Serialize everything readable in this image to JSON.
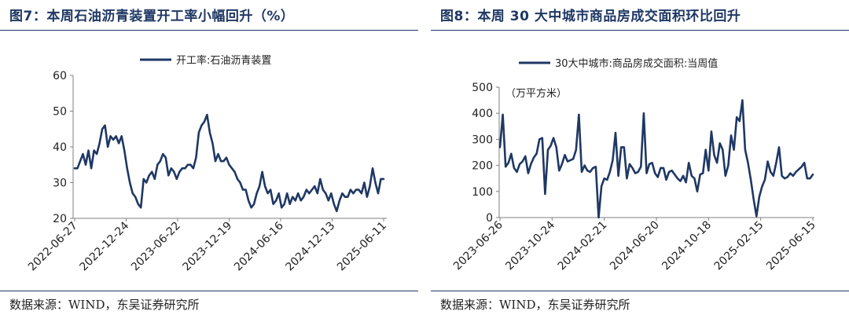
{
  "colors": {
    "series": "#1f3864",
    "axis": "#7f7f7f",
    "title": "#1f3864"
  },
  "chart_data": [
    {
      "type": "line",
      "title": "图7：本周石油沥青装置开工率小幅回升（%）",
      "source": "数据来源：WIND，东吴证券研究所",
      "legend_position": "top-center",
      "grid": false,
      "ylim": [
        20,
        60
      ],
      "yticks": [
        "20",
        "30",
        "40",
        "50",
        "60"
      ],
      "xticks": [
        "2022-06-27",
        "2022-12-24",
        "2023-06-22",
        "2023-12-19",
        "2024-06-16",
        "2024-12-13",
        "2025-06-11"
      ],
      "series": [
        {
          "name": "开工率:石油沥青装置",
          "values": [
            34,
            34,
            36,
            38,
            35,
            39,
            34,
            39,
            38,
            41,
            45,
            46,
            40,
            43,
            42,
            43,
            41,
            43,
            39,
            34,
            30,
            27,
            26,
            24,
            23,
            31,
            30,
            32,
            33,
            31,
            35,
            36,
            38,
            37,
            32,
            34,
            33,
            31,
            33,
            34,
            34,
            35,
            35,
            34,
            37,
            44,
            46,
            47,
            49,
            44,
            41,
            36,
            38,
            36,
            36,
            37,
            35,
            34,
            33,
            31,
            30,
            28,
            28,
            25,
            23,
            24,
            27,
            29,
            33,
            29,
            27,
            28,
            24,
            25,
            27,
            23,
            24,
            27,
            24,
            26,
            25,
            27,
            25,
            26,
            28,
            27,
            28,
            29,
            27,
            31,
            28,
            27,
            25,
            27,
            24,
            22,
            25,
            27,
            26,
            26,
            28,
            27,
            28,
            28,
            27,
            30,
            26,
            29,
            34,
            30,
            27,
            31,
            31
          ]
        }
      ]
    },
    {
      "type": "line",
      "title": "图8：本周 30 大中城市商品房成交面积环比回升",
      "source": "数据来源：WIND，东吴证券研究所",
      "legend_position": "top-center",
      "grid": false,
      "unit_label": "（万平方米）",
      "ylim": [
        0,
        500
      ],
      "yticks": [
        "0",
        "100",
        "200",
        "300",
        "400",
        "500"
      ],
      "xticks": [
        "2023-06-26",
        "2023-10-24",
        "2024-02-21",
        "2024-06-20",
        "2024-10-18",
        "2025-02-15",
        "2025-06-15"
      ],
      "series": [
        {
          "name": "30大中城市:商品房成交面积:当周值",
          "values": [
            270,
            395,
            195,
            210,
            245,
            190,
            175,
            205,
            215,
            235,
            170,
            205,
            230,
            245,
            300,
            305,
            90,
            260,
            275,
            305,
            270,
            180,
            205,
            240,
            215,
            220,
            225,
            260,
            395,
            175,
            200,
            180,
            175,
            190,
            195,
            0,
            120,
            150,
            145,
            175,
            220,
            325,
            160,
            270,
            270,
            150,
            205,
            190,
            170,
            175,
            195,
            400,
            170,
            205,
            210,
            170,
            155,
            190,
            190,
            145,
            175,
            180,
            165,
            150,
            140,
            160,
            135,
            210,
            160,
            150,
            100,
            165,
            170,
            260,
            180,
            330,
            240,
            210,
            285,
            260,
            160,
            200,
            315,
            260,
            385,
            370,
            450,
            260,
            210,
            145,
            70,
            5,
            80,
            120,
            145,
            215,
            175,
            160,
            210,
            270,
            160,
            150,
            155,
            170,
            160,
            175,
            185,
            195,
            210,
            150,
            150,
            165
          ]
        }
      ]
    }
  ]
}
